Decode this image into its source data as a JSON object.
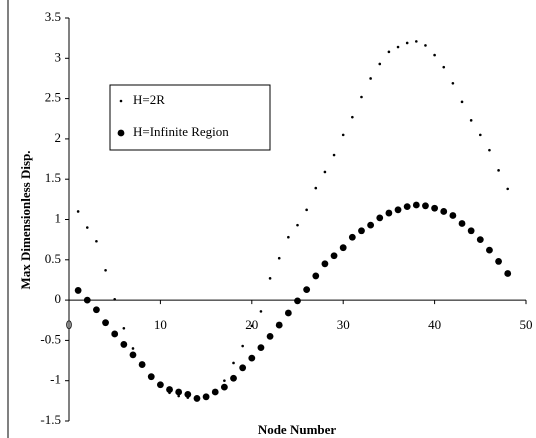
{
  "chart_data": {
    "type": "scatter",
    "x_label": "Node Number",
    "y_label": "Max Dimensionless Disp.",
    "x": [
      1,
      2,
      3,
      4,
      5,
      6,
      7,
      8,
      9,
      10,
      11,
      12,
      13,
      14,
      15,
      16,
      17,
      18,
      19,
      20,
      21,
      22,
      23,
      24,
      25,
      26,
      27,
      28,
      29,
      30,
      31,
      32,
      33,
      34,
      35,
      36,
      37,
      38,
      39,
      40,
      41,
      42,
      43,
      44,
      45,
      46,
      47,
      48
    ],
    "series": [
      {
        "name": "H=2R",
        "color": "#000000",
        "marker_size": 1.3,
        "values": [
          1.1,
          0.9,
          0.73,
          0.37,
          0.01,
          -0.35,
          -0.6,
          -0.8,
          -0.95,
          -1.07,
          -1.15,
          -1.19,
          -1.21,
          -1.22,
          -1.2,
          -1.12,
          -1.0,
          -0.78,
          -0.57,
          -0.32,
          -0.14,
          0.27,
          0.52,
          0.78,
          0.93,
          1.12,
          1.39,
          1.59,
          1.8,
          2.05,
          2.27,
          2.52,
          2.75,
          2.93,
          3.08,
          3.14,
          3.19,
          3.21,
          3.16,
          3.04,
          2.89,
          2.69,
          2.46,
          2.23,
          2.05,
          1.86,
          1.61,
          1.38
        ]
      },
      {
        "name": "H=Infinite Region",
        "color": "#000000",
        "marker_size": 3.4,
        "values": [
          0.12,
          0.0,
          -0.12,
          -0.28,
          -0.42,
          -0.55,
          -0.68,
          -0.8,
          -0.95,
          -1.05,
          -1.11,
          -1.14,
          -1.17,
          -1.22,
          -1.2,
          -1.14,
          -1.08,
          -0.97,
          -0.84,
          -0.72,
          -0.59,
          -0.45,
          -0.31,
          -0.16,
          -0.01,
          0.13,
          0.3,
          0.45,
          0.55,
          0.65,
          0.78,
          0.86,
          0.93,
          1.02,
          1.08,
          1.12,
          1.16,
          1.18,
          1.17,
          1.14,
          1.1,
          1.05,
          0.95,
          0.86,
          0.75,
          0.62,
          0.48,
          0.33
        ]
      }
    ],
    "xlim": [
      0,
      50
    ],
    "xticks": [
      0,
      10,
      20,
      30,
      40,
      50
    ],
    "ylim": [
      -1.5,
      3.5
    ],
    "yticks": [
      -1.5,
      -1,
      -0.5,
      0,
      0.5,
      1,
      1.5,
      2,
      2.5,
      3,
      3.5
    ],
    "grid": false,
    "legend": "upper-left"
  }
}
